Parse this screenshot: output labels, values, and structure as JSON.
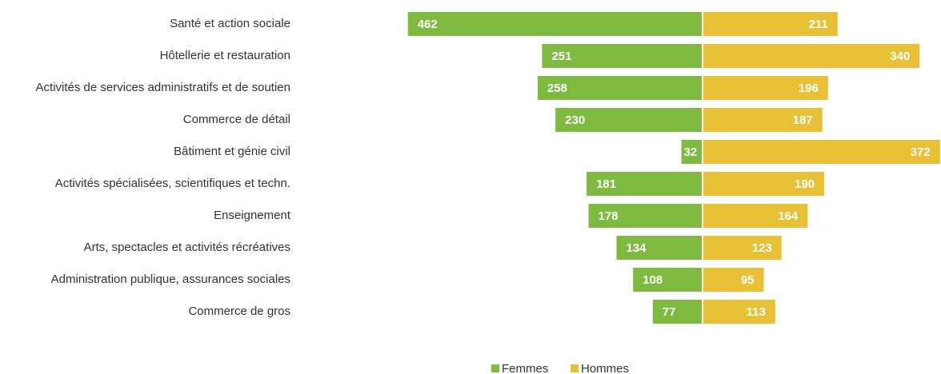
{
  "chart_data": {
    "type": "bar",
    "orientation": "horizontal",
    "layout": "butterfly",
    "categories": [
      "Santé et action sociale",
      "Hôtellerie et restauration",
      "Activités de services administratifs et de soutien",
      "Commerce de détail",
      "Bâtiment et génie civil",
      "Activités spécialisées, scientifiques et techn.",
      "Enseignement",
      "Arts, spectacles et activités récréatives",
      "Administration publique, assurances sociales",
      "Commerce de gros"
    ],
    "series": [
      {
        "name": "Femmes",
        "color": "#7dba3f",
        "values": [
          462,
          251,
          258,
          230,
          32,
          181,
          178,
          134,
          108,
          77
        ]
      },
      {
        "name": "Hommes",
        "color": "#e8c036",
        "values": [
          211,
          340,
          196,
          187,
          372,
          190,
          164,
          123,
          95,
          113
        ]
      }
    ],
    "legend": "bottom"
  }
}
